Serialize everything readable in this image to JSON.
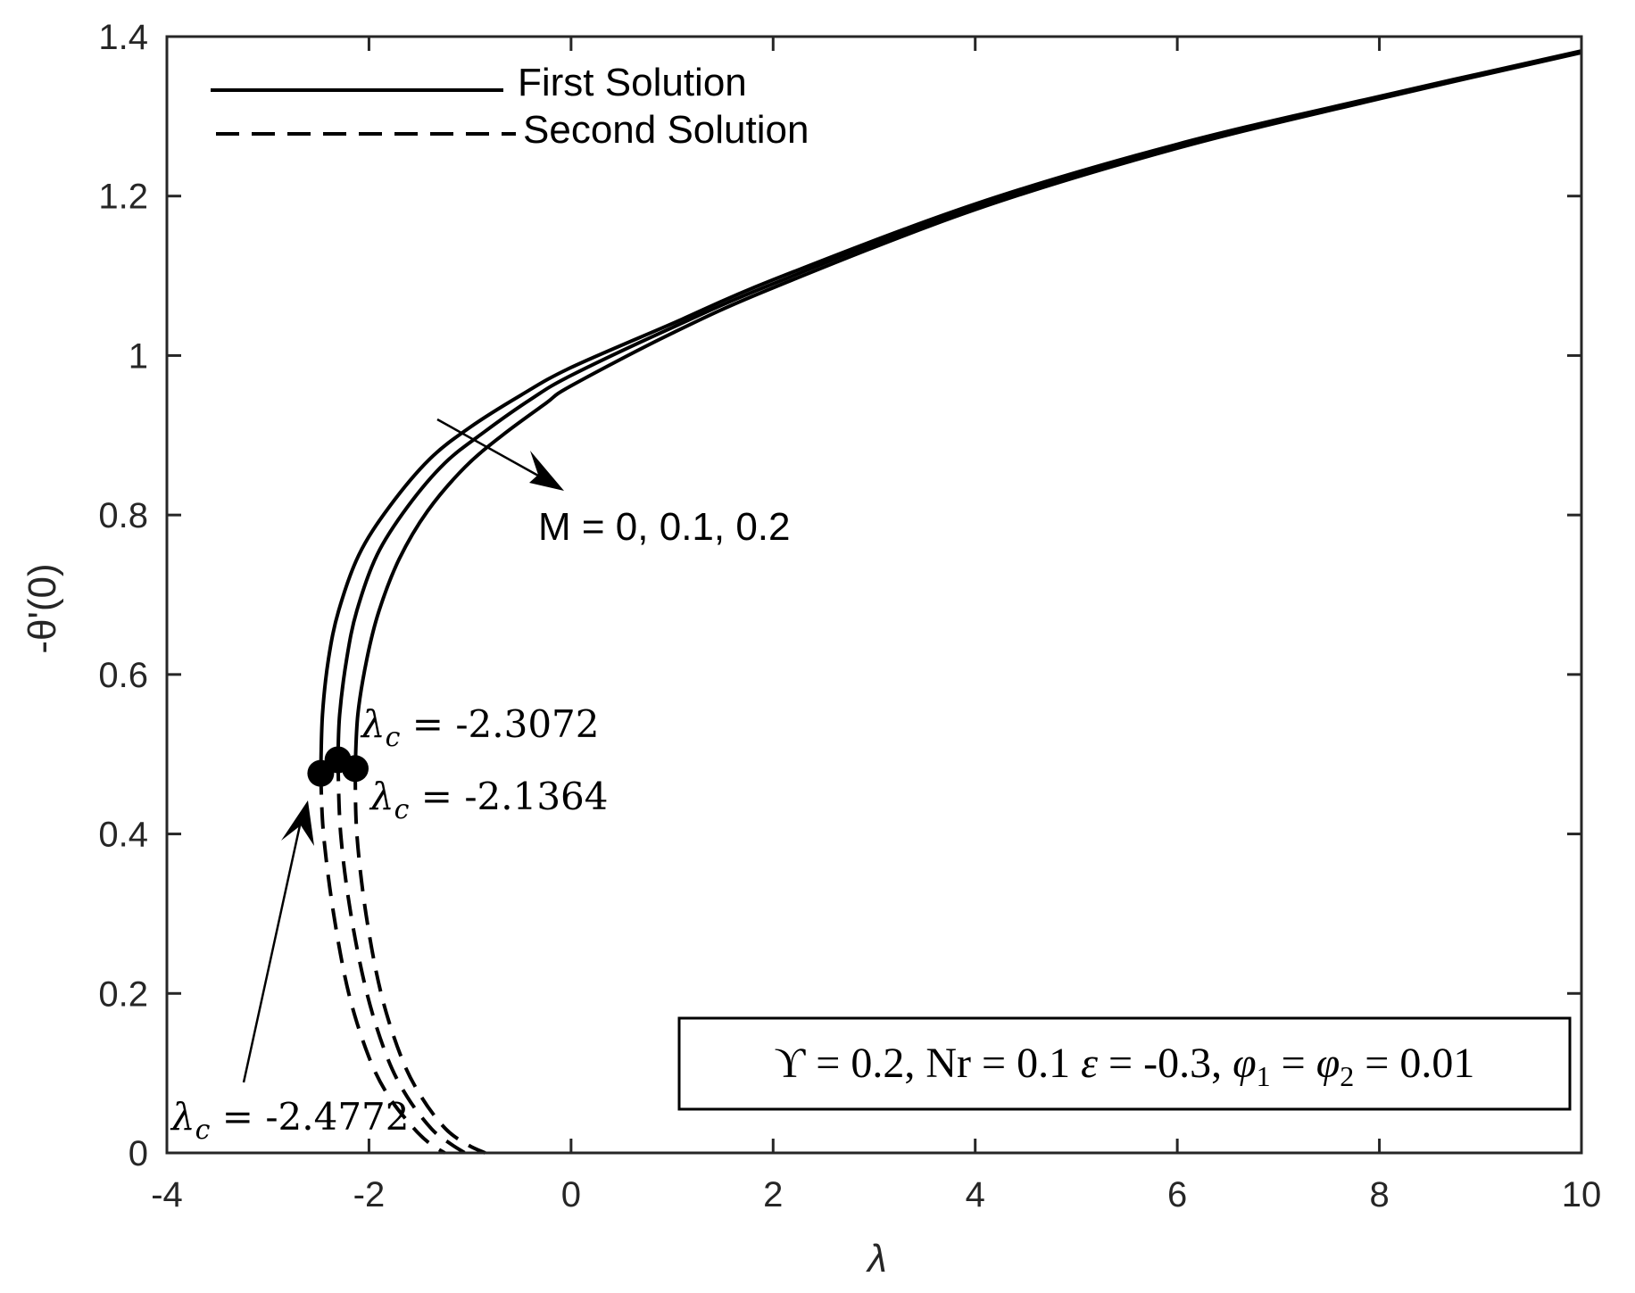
{
  "chart_data": {
    "type": "line",
    "title": "",
    "xlabel": "λ",
    "ylabel": "-θ'(0)",
    "xlim": [
      -4,
      10
    ],
    "ylim": [
      0,
      1.4
    ],
    "grid": false,
    "box": true,
    "x_ticks": [
      -4,
      -2,
      0,
      2,
      4,
      6,
      8,
      10
    ],
    "y_ticks": [
      0,
      0.2,
      0.4,
      0.6,
      0.8,
      1,
      1.2,
      1.4
    ],
    "x_tick_labels": [
      "-4",
      "-2",
      "0",
      "2",
      "4",
      "6",
      "8",
      "10"
    ],
    "y_tick_labels": [
      "0",
      "0.2",
      "0.4",
      "0.6",
      "0.8",
      "1",
      "1.2",
      "1.4"
    ],
    "legend": {
      "position": "upper left",
      "entries": [
        {
          "label": "First Solution",
          "style": "solid"
        },
        {
          "label": "Second Solution",
          "style": "dashed"
        }
      ]
    },
    "series": [
      {
        "name": "First Solution, M = 0",
        "style": "solid",
        "x": [
          -2.4772,
          -2.46,
          -2.4,
          -2.3,
          -2.1,
          -1.8,
          -1.4,
          -1.0,
          -0.5,
          0.0,
          1.0,
          2.0,
          4.0,
          6.0,
          8.0,
          10.0
        ],
        "y": [
          0.476,
          0.55,
          0.62,
          0.68,
          0.75,
          0.81,
          0.87,
          0.91,
          0.95,
          0.985,
          1.04,
          1.095,
          1.19,
          1.265,
          1.325,
          1.382
        ]
      },
      {
        "name": "First Solution, M = 0.1",
        "style": "solid",
        "x": [
          -2.3072,
          -2.29,
          -2.22,
          -2.12,
          -1.92,
          -1.62,
          -1.25,
          -0.85,
          -0.4,
          0.0,
          1.0,
          2.0,
          4.0,
          6.0,
          8.0,
          10.0
        ],
        "y": [
          0.493,
          0.55,
          0.62,
          0.68,
          0.75,
          0.81,
          0.865,
          0.905,
          0.945,
          0.975,
          1.035,
          1.09,
          1.187,
          1.263,
          1.324,
          1.381
        ]
      },
      {
        "name": "First Solution, M = 0.2",
        "style": "solid",
        "x": [
          -2.1364,
          -2.11,
          -2.02,
          -1.9,
          -1.7,
          -1.42,
          -1.05,
          -0.68,
          -0.25,
          0.0,
          1.0,
          2.0,
          4.0,
          6.0,
          8.0,
          10.0
        ],
        "y": [
          0.482,
          0.55,
          0.62,
          0.68,
          0.745,
          0.805,
          0.86,
          0.9,
          0.94,
          0.962,
          1.028,
          1.085,
          1.183,
          1.26,
          1.322,
          1.38
        ]
      },
      {
        "name": "Second Solution, M = 0",
        "style": "dashed",
        "x": [
          -2.4772,
          -2.45,
          -2.35,
          -2.2,
          -2.0,
          -1.8,
          -1.55,
          -1.4,
          -1.25
        ],
        "y": [
          0.476,
          0.4,
          0.3,
          0.2,
          0.12,
          0.07,
          0.03,
          0.012,
          0.0
        ]
      },
      {
        "name": "Second Solution, M = 0.1",
        "style": "dashed",
        "x": [
          -2.3072,
          -2.28,
          -2.18,
          -2.02,
          -1.82,
          -1.62,
          -1.38,
          -1.2,
          -1.05
        ],
        "y": [
          0.493,
          0.4,
          0.3,
          0.2,
          0.12,
          0.07,
          0.03,
          0.012,
          0.0
        ]
      },
      {
        "name": "Second Solution, M = 0.2",
        "style": "dashed",
        "x": [
          -2.1364,
          -2.12,
          -2.03,
          -1.88,
          -1.68,
          -1.48,
          -1.24,
          -1.02,
          -0.85
        ],
        "y": [
          0.482,
          0.4,
          0.3,
          0.2,
          0.12,
          0.07,
          0.03,
          0.01,
          0.0
        ]
      }
    ],
    "critical_points": [
      {
        "label": "λc = -2.4772",
        "x": -2.4772,
        "y": 0.476
      },
      {
        "label": "λc = -2.3072",
        "x": -2.3072,
        "y": 0.493
      },
      {
        "label": "λc = -2.1364",
        "x": -2.1364,
        "y": 0.482
      }
    ],
    "annotations": [
      {
        "text": "M = 0, 0.1, 0.2",
        "arrow": "increasing M shifts curves right/down"
      },
      {
        "text": "λc = -2.3072"
      },
      {
        "text": "λc = -2.1364"
      },
      {
        "text": "λc = -2.4772"
      },
      {
        "text": "ϒ = 0.2, Nr = 0.1 ε = -0.3, φ1 = φ2 = 0.01",
        "boxed": true
      }
    ]
  },
  "labels": {
    "xlabel": "λ",
    "ylabel": "-θ'(0)",
    "legend_first": "First Solution",
    "legend_second": "Second Solution",
    "m_annotation": "M = 0, 0.1, 0.2",
    "lc1": "λ",
    "lc1_sub": "c",
    "lc1_val": " = -2.3072",
    "lc2": "λ",
    "lc2_sub": "c",
    "lc2_val": " = -2.1364",
    "lc3": "λ",
    "lc3_sub": "c",
    "lc3_val": " = -2.4772",
    "params_box": {
      "upsilon": "ϒ = 0.2, Nr = 0.1 ",
      "eps": "ε",
      "eps_val": " = -0.3, ",
      "phi1": "φ",
      "phi1_sub": "1",
      "eq": " = ",
      "phi2": "φ",
      "phi2_sub": "2",
      "end": " = 0.01"
    }
  },
  "colors": {
    "axis": "#262626",
    "line": "#000000",
    "background": "#ffffff"
  }
}
